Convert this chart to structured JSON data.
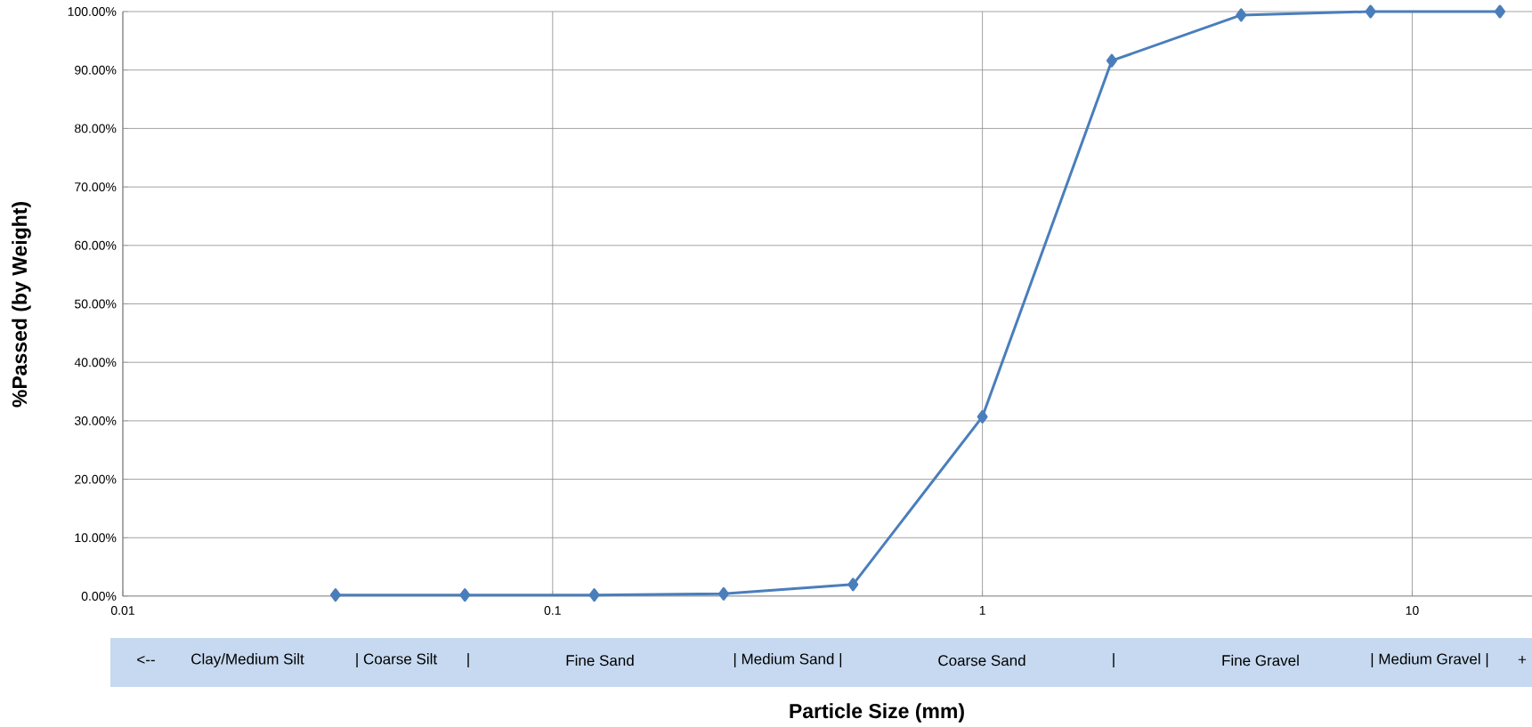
{
  "chart_data": {
    "type": "line",
    "xlabel": "Particle Size (mm)",
    "ylabel": "%Passed (by Weight)",
    "log": "x",
    "x": [
      0.03125,
      0.0625,
      0.125,
      0.25,
      0.5,
      1,
      2,
      4,
      8,
      16
    ],
    "series": [
      {
        "color": "#4a7ebb",
        "values": [
          0.2,
          0.2,
          0.2,
          0.4,
          2.0,
          30.7,
          91.6,
          99.4,
          100,
          100
        ]
      }
    ],
    "marker": "diamond",
    "line_style": "solid",
    "grid": true,
    "xlim": [
      0.01,
      19
    ],
    "xticks": [
      0.01,
      0.1,
      1,
      10
    ],
    "ylim": [
      0,
      100
    ],
    "yticks": [
      {
        "value": 0,
        "label": "0.00%"
      },
      {
        "value": 10,
        "label": "10.00%"
      },
      {
        "value": 20,
        "label": "20.00%"
      },
      {
        "value": 30,
        "label": "30.00%"
      },
      {
        "value": 40,
        "label": "40.00%"
      },
      {
        "value": 50,
        "label": "50.00%"
      },
      {
        "value": 60,
        "label": "60.00%"
      },
      {
        "value": 70,
        "label": "70.00%"
      },
      {
        "value": 80,
        "label": "80.00%"
      },
      {
        "value": 90,
        "label": "90.00%"
      },
      {
        "value": 100,
        "label": "100.00%"
      }
    ],
    "annotations": [
      "<--",
      "Clay/Medium Silt",
      "| Coarse Silt",
      "|",
      "Fine Sand",
      "| Medium Sand |",
      "Coarse Sand",
      "|",
      "Fine Gravel",
      "| Medium Gravel |",
      "+"
    ]
  }
}
